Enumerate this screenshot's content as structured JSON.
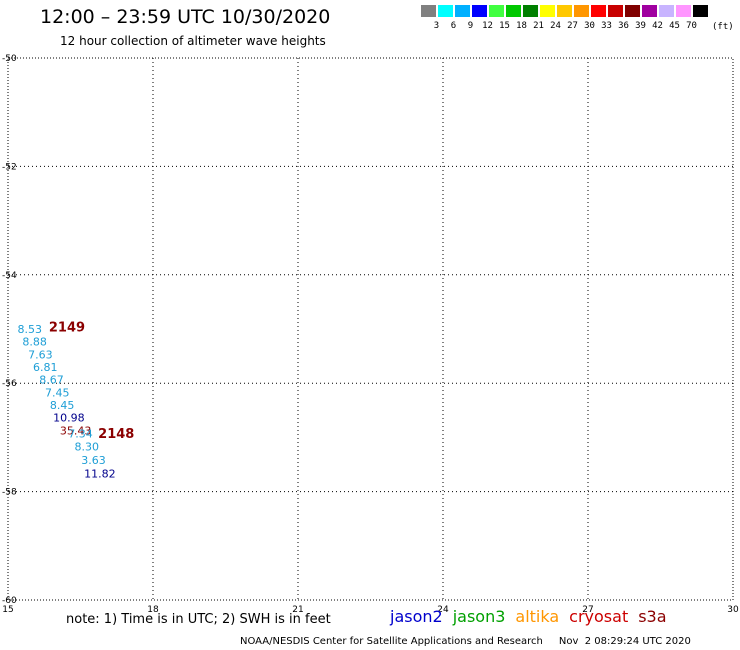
{
  "header": {
    "title": "12:00 – 23:59 UTC 10/30/2020",
    "subtitle": "12 hour collection of altimeter wave heights"
  },
  "legend": {
    "colors": [
      "#808080",
      "#00ffff",
      "#00b0ff",
      "#0000ff",
      "#40ff40",
      "#00c800",
      "#008000",
      "#ffff00",
      "#ffc800",
      "#ff9600",
      "#ff0000",
      "#c80000",
      "#800000",
      "#a000a0",
      "#c8b4ff",
      "#ff96ff",
      "#000000"
    ],
    "labels": [
      "3",
      "6",
      "9",
      "12",
      "15",
      "18",
      "21",
      "24",
      "27",
      "30",
      "33",
      "36",
      "39",
      "42",
      "45",
      "70"
    ],
    "units": "(ft)"
  },
  "chart_data": {
    "type": "scatter",
    "title": "12:00 – 23:59 UTC 10/30/2020",
    "subtitle": "12 hour collection of altimeter wave heights",
    "xlim": [
      15,
      30
    ],
    "ylim": [
      -60,
      -50
    ],
    "x_ticks": [
      15,
      18,
      21,
      24,
      27,
      30
    ],
    "y_ticks": [
      -50,
      -52,
      -54,
      -56,
      -58,
      -60
    ],
    "grid": true,
    "points": [
      {
        "x": 15.45,
        "y": -55.0,
        "label": "8.53",
        "color": "#1e9ed6"
      },
      {
        "x": 15.55,
        "y": -55.23,
        "label": "8.88",
        "color": "#1e9ed6"
      },
      {
        "x": 15.67,
        "y": -55.47,
        "label": "7.63",
        "color": "#1e9ed6"
      },
      {
        "x": 15.77,
        "y": -55.7,
        "label": "6.81",
        "color": "#1e9ed6"
      },
      {
        "x": 15.9,
        "y": -55.93,
        "label": "8.67",
        "color": "#1e9ed6"
      },
      {
        "x": 16.02,
        "y": -56.17,
        "label": "7.45",
        "color": "#1e9ed6"
      },
      {
        "x": 16.12,
        "y": -56.4,
        "label": "8.45",
        "color": "#1e9ed6"
      },
      {
        "x": 16.26,
        "y": -56.63,
        "label": "10.98",
        "color": "#00008b"
      },
      {
        "x": 16.4,
        "y": -56.87,
        "label": "35.43",
        "color": "#8b0000"
      },
      {
        "x": 16.5,
        "y": -56.93,
        "label": "7.34",
        "color": "#1e9ed6"
      },
      {
        "x": 16.63,
        "y": -57.17,
        "label": "8.30",
        "color": "#1e9ed6"
      },
      {
        "x": 16.77,
        "y": -57.42,
        "label": "3.63",
        "color": "#1e9ed6"
      },
      {
        "x": 16.9,
        "y": -57.67,
        "label": "11.82",
        "color": "#00008b"
      }
    ],
    "annotations": [
      {
        "x": 16.22,
        "y": -54.95,
        "text": "2149",
        "color": "#8b0000"
      },
      {
        "x": 17.24,
        "y": -56.92,
        "text": "2148",
        "color": "#8b0000"
      }
    ]
  },
  "footer": {
    "note": "note: 1) Time is in UTC; 2) SWH is in feet",
    "satellites": [
      {
        "name": "jason2",
        "color": "#0000cc"
      },
      {
        "name": "jason3",
        "color": "#00a000"
      },
      {
        "name": "altika",
        "color": "#ff9600"
      },
      {
        "name": "cryosat",
        "color": "#cc0000"
      },
      {
        "name": "s3a",
        "color": "#8b0000"
      }
    ],
    "credit": "NOAA/NESDIS Center for Satellite Applications and Research",
    "timestamp": "Nov  2 08:29:24 UTC 2020"
  }
}
